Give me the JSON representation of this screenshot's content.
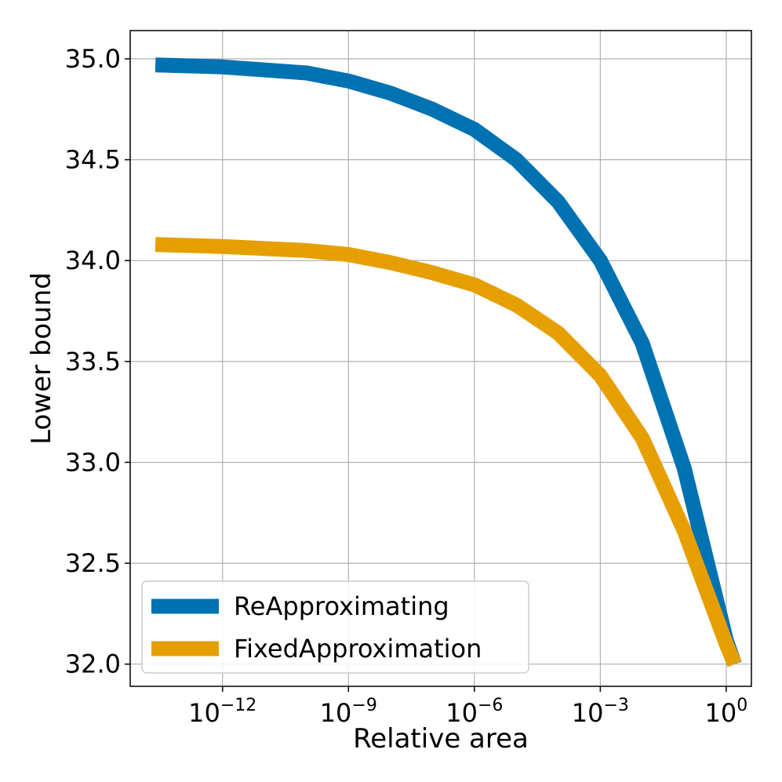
{
  "chart_data": {
    "type": "line",
    "xscale": "log",
    "xlabel": "Relative area",
    "ylabel": "Lower bound",
    "xlim_exp": [
      -14.2,
      0.6
    ],
    "ylim": [
      31.89,
      35.14
    ],
    "x_ticks": [
      {
        "base": "10",
        "exp": "−12",
        "value": -12
      },
      {
        "base": "10",
        "exp": "−9",
        "value": -9
      },
      {
        "base": "10",
        "exp": "−6",
        "value": -6
      },
      {
        "base": "10",
        "exp": "−3",
        "value": -3
      },
      {
        "base": "10",
        "exp": "0",
        "value": 0
      }
    ],
    "y_ticks": [
      {
        "label": "35.0",
        "value": 35.0
      },
      {
        "label": "34.5",
        "value": 34.5
      },
      {
        "label": "34.0",
        "value": 34.0
      },
      {
        "label": "33.5",
        "value": 33.5
      },
      {
        "label": "33.0",
        "value": 33.0
      },
      {
        "label": "32.5",
        "value": 32.5
      },
      {
        "label": "32.0",
        "value": 32.0
      }
    ],
    "grid": true,
    "legend_position": "lower-left",
    "series": [
      {
        "name": "ReApproximating",
        "color": "#0072b2",
        "x_exp": [
          -13.6,
          -12,
          -10,
          -9,
          -8,
          -7,
          -6,
          -5,
          -4,
          -3,
          -2,
          -1,
          0,
          0.2
        ],
        "y": [
          34.97,
          34.96,
          34.93,
          34.89,
          34.83,
          34.75,
          34.65,
          34.5,
          34.29,
          34.0,
          33.59,
          32.97,
          32.12,
          32.0
        ]
      },
      {
        "name": "FixedApproximation",
        "color": "#e69f00",
        "x_exp": [
          -13.6,
          -12,
          -10,
          -9,
          -8,
          -7,
          -6,
          -5,
          -4,
          -3,
          -2,
          -1,
          0,
          0.2
        ],
        "y": [
          34.08,
          34.07,
          34.05,
          34.03,
          33.99,
          33.94,
          33.88,
          33.78,
          33.64,
          33.43,
          33.12,
          32.66,
          32.1,
          32.0
        ]
      }
    ]
  }
}
